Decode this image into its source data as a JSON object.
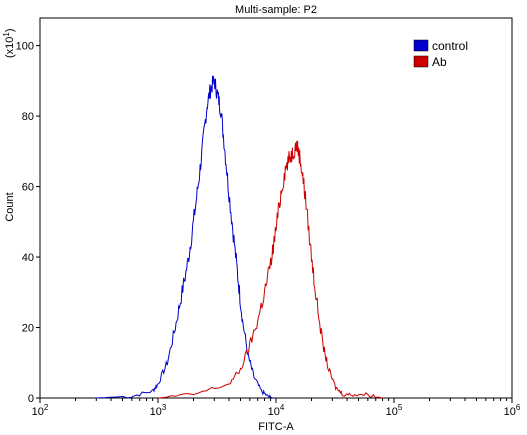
{
  "chart_data": {
    "type": "line",
    "title": "Multi-sample: P2",
    "xlabel": "FITC-A",
    "ylabel": "Count",
    "y_multiplier_label": "(x10",
    "y_multiplier_exp": "1",
    "y_multiplier_close": ")",
    "x_scale": "log",
    "xlim": [
      100,
      1000000
    ],
    "ylim": [
      0,
      105
    ],
    "x_ticks": [
      {
        "value": 100,
        "base": "10",
        "exp": "2"
      },
      {
        "value": 1000,
        "base": "10",
        "exp": "3"
      },
      {
        "value": 10000,
        "base": "10",
        "exp": "4"
      },
      {
        "value": 100000,
        "base": "10",
        "exp": "5"
      },
      {
        "value": 1000000,
        "base": "10",
        "exp": "6"
      }
    ],
    "y_ticks": [
      0,
      20,
      40,
      60,
      80,
      100
    ],
    "grid": false,
    "legend_position": "top-right",
    "series": [
      {
        "name": "control",
        "color": "#0000cc",
        "x": [
          300,
          600,
          900,
          1000,
          1200,
          1400,
          1600,
          1800,
          2000,
          2200,
          2400,
          2600,
          2800,
          3000,
          3200,
          3400,
          3700,
          4000,
          4400,
          4800,
          5200,
          5800,
          6500,
          7500,
          8500,
          9500
        ],
        "y": [
          0,
          0.5,
          2,
          4,
          10,
          20,
          30,
          39,
          50,
          61,
          72,
          83,
          88,
          90,
          86,
          82,
          70,
          58,
          45,
          33,
          22,
          12,
          6,
          2,
          0.5,
          0
        ]
      },
      {
        "name": "Ab",
        "color": "#cc0000",
        "x": [
          1000,
          2000,
          4000,
          5000,
          6000,
          7000,
          8000,
          9000,
          10000,
          11000,
          12000,
          13000,
          14000,
          15000,
          16000,
          17000,
          18000,
          20000,
          22000,
          25000,
          28000,
          32000,
          37000,
          45000,
          60000,
          80000
        ],
        "y": [
          0,
          1,
          4,
          8,
          15,
          22,
          30,
          38,
          48,
          58,
          65,
          68,
          70,
          72,
          68,
          62,
          55,
          40,
          28,
          15,
          8,
          3,
          1,
          1,
          1,
          0
        ]
      }
    ]
  }
}
